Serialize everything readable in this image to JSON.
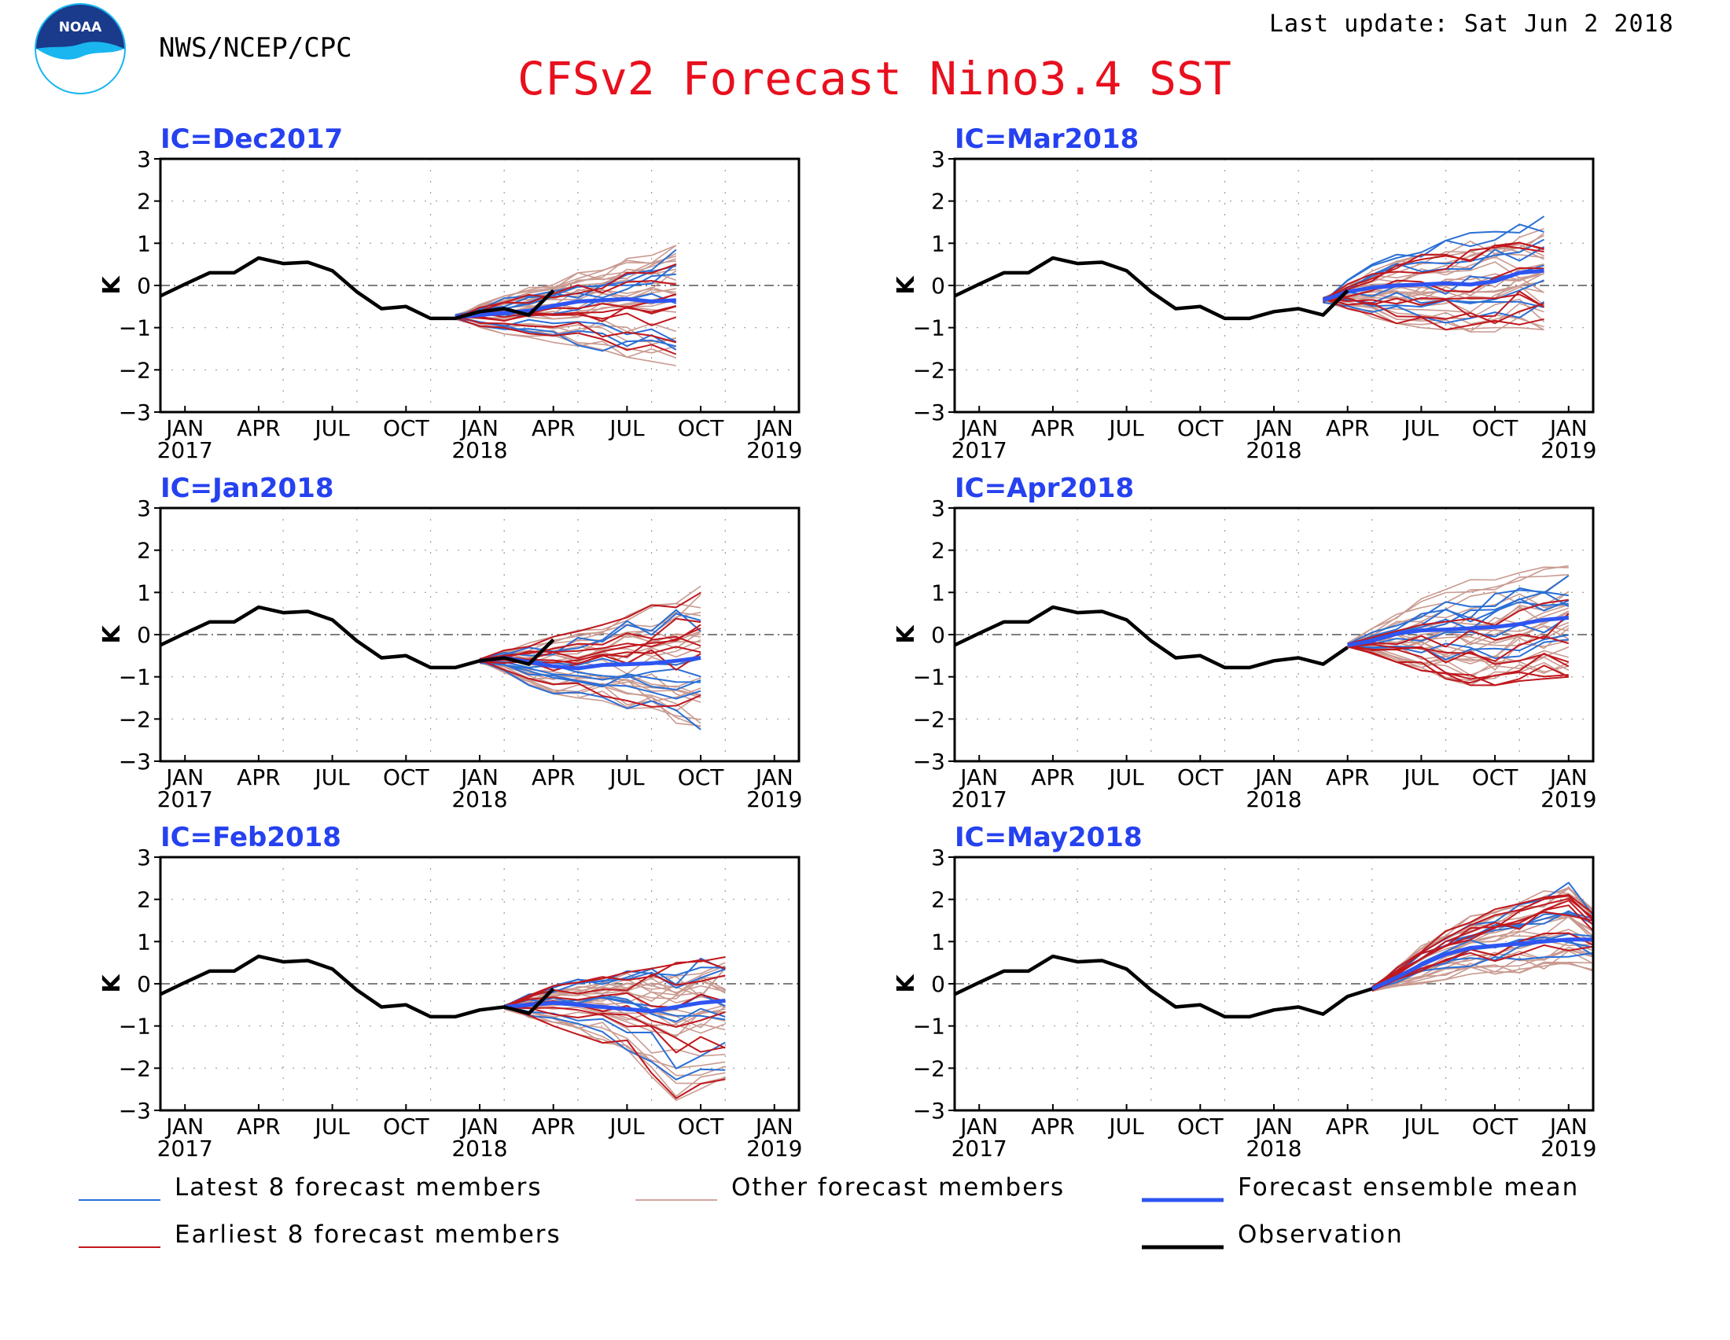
{
  "header": {
    "agency": "NWS/NCEP/CPC",
    "logo_text": "NOAA",
    "title": "CFSv2 Forecast Nino3.4 SST",
    "last_update": "Last update: Sat Jun 2 2018"
  },
  "colors": {
    "title": "#e8101e",
    "panel_title": "#2541f0",
    "latest": "#2a6fd6",
    "other": "#c99a90",
    "earliest": "#c0181e",
    "mean": "#2e55f2",
    "observation": "#000000"
  },
  "legend": [
    {
      "key": "latest",
      "label": "Latest 8 forecast members"
    },
    {
      "key": "other",
      "label": "Other forecast members"
    },
    {
      "key": "mean",
      "label": "Forecast ensemble mean"
    },
    {
      "key": "earliest",
      "label": "Earliest 8 forecast members"
    },
    {
      "key": "observation",
      "label": "Observation"
    }
  ],
  "chart_data": [
    {
      "type": "line",
      "title": "IC=Dec2017",
      "ylabel": "K",
      "ylim": [
        -3,
        3
      ],
      "yticks": [
        "3",
        "2",
        "1",
        "0",
        "−1",
        "−2",
        "−3"
      ],
      "xticks": [
        {
          "month": "JAN",
          "year": "2017"
        },
        {
          "month": "APR"
        },
        {
          "month": "JUL"
        },
        {
          "month": "OCT"
        },
        {
          "month": "JAN",
          "year": "2018"
        },
        {
          "month": "APR"
        },
        {
          "month": "JUL"
        },
        {
          "month": "OCT"
        },
        {
          "month": "JAN",
          "year": "2019"
        }
      ],
      "x_range": [
        "Dec 2016",
        "Feb 2019"
      ],
      "observation": {
        "x": [
          "Dec 2016",
          "Jan 2017",
          "Feb 2017",
          "Mar 2017",
          "Apr 2017",
          "May 2017",
          "Jun 2017",
          "Jul 2017",
          "Aug 2017",
          "Sep 2017",
          "Oct 2017",
          "Nov 2017",
          "Dec 2017",
          "Jan 2018",
          "Feb 2018",
          "Mar 2018",
          "Apr 2018"
        ],
        "y": [
          -0.25,
          0.03,
          0.3,
          0.3,
          0.65,
          0.52,
          0.55,
          0.35,
          -0.15,
          -0.55,
          -0.5,
          -0.78,
          -0.78,
          -0.62,
          -0.55,
          -0.7,
          -0.12
        ]
      },
      "forecast": {
        "start": "Dec 2017",
        "end": "Sep 2018",
        "mean": [
          -0.75,
          -0.7,
          -0.65,
          -0.6,
          -0.48,
          -0.38,
          -0.35,
          -0.32,
          -0.38,
          -0.35
        ],
        "spread_low": [
          -0.85,
          -1.0,
          -1.15,
          -1.25,
          -1.35,
          -1.45,
          -1.55,
          -1.7,
          -1.8,
          -1.9
        ],
        "spread_high": [
          -0.65,
          -0.45,
          -0.25,
          -0.05,
          0.15,
          0.3,
          0.45,
          0.65,
          0.8,
          0.95
        ]
      }
    },
    {
      "type": "line",
      "title": "IC=Mar2018",
      "ylabel": "K",
      "ylim": [
        -3,
        3
      ],
      "yticks": [
        "3",
        "2",
        "1",
        "0",
        "−1",
        "−2",
        "−3"
      ],
      "xticks": [
        {
          "month": "JAN",
          "year": "2017"
        },
        {
          "month": "APR"
        },
        {
          "month": "JUL"
        },
        {
          "month": "OCT"
        },
        {
          "month": "JAN",
          "year": "2018"
        },
        {
          "month": "APR"
        },
        {
          "month": "JUL"
        },
        {
          "month": "OCT"
        },
        {
          "month": "JAN",
          "year": "2019"
        }
      ],
      "x_range": [
        "Dec 2016",
        "Feb 2019"
      ],
      "observation": {
        "x": [
          "Dec 2016",
          "Jan 2017",
          "Feb 2017",
          "Mar 2017",
          "Apr 2017",
          "May 2017",
          "Jun 2017",
          "Jul 2017",
          "Aug 2017",
          "Sep 2017",
          "Oct 2017",
          "Nov 2017",
          "Dec 2017",
          "Jan 2018",
          "Feb 2018",
          "Mar 2018",
          "Apr 2018"
        ],
        "y": [
          -0.25,
          0.03,
          0.3,
          0.3,
          0.65,
          0.52,
          0.55,
          0.35,
          -0.15,
          -0.55,
          -0.5,
          -0.78,
          -0.78,
          -0.62,
          -0.55,
          -0.7,
          -0.12
        ]
      },
      "forecast": {
        "start": "Mar 2018",
        "end": "Dec 2018",
        "mean": [
          -0.35,
          -0.15,
          -0.05,
          0.0,
          0.02,
          0.05,
          0.02,
          0.1,
          0.3,
          0.35
        ],
        "spread_low": [
          -0.45,
          -0.55,
          -0.75,
          -0.9,
          -1.0,
          -1.05,
          -1.1,
          -1.1,
          -1.0,
          -1.05
        ],
        "spread_high": [
          -0.25,
          0.15,
          0.5,
          0.8,
          1.0,
          1.15,
          1.25,
          1.35,
          1.5,
          1.65
        ]
      }
    },
    {
      "type": "line",
      "title": "IC=Jan2018",
      "ylabel": "K",
      "ylim": [
        -3,
        3
      ],
      "yticks": [
        "3",
        "2",
        "1",
        "0",
        "−1",
        "−2",
        "−3"
      ],
      "xticks": [
        {
          "month": "JAN",
          "year": "2017"
        },
        {
          "month": "APR"
        },
        {
          "month": "JUL"
        },
        {
          "month": "OCT"
        },
        {
          "month": "JAN",
          "year": "2018"
        },
        {
          "month": "APR"
        },
        {
          "month": "JUL"
        },
        {
          "month": "OCT"
        },
        {
          "month": "JAN",
          "year": "2019"
        }
      ],
      "x_range": [
        "Dec 2016",
        "Feb 2019"
      ],
      "observation": {
        "x": [
          "Dec 2016",
          "Jan 2017",
          "Feb 2017",
          "Mar 2017",
          "Apr 2017",
          "May 2017",
          "Jun 2017",
          "Jul 2017",
          "Aug 2017",
          "Sep 2017",
          "Oct 2017",
          "Nov 2017",
          "Dec 2017",
          "Jan 2018",
          "Feb 2018",
          "Mar 2018",
          "Apr 2018"
        ],
        "y": [
          -0.25,
          0.03,
          0.3,
          0.3,
          0.65,
          0.52,
          0.55,
          0.35,
          -0.15,
          -0.55,
          -0.5,
          -0.78,
          -0.78,
          -0.62,
          -0.55,
          -0.7,
          -0.12
        ]
      },
      "forecast": {
        "start": "Jan 2018",
        "end": "Oct 2018",
        "mean": [
          -0.62,
          -0.55,
          -0.65,
          -0.75,
          -0.8,
          -0.72,
          -0.7,
          -0.68,
          -0.62,
          -0.55
        ],
        "spread_low": [
          -0.7,
          -0.9,
          -1.2,
          -1.4,
          -1.5,
          -1.6,
          -1.75,
          -1.9,
          -2.1,
          -2.25
        ],
        "spread_high": [
          -0.5,
          -0.35,
          -0.2,
          -0.05,
          0.1,
          0.3,
          0.5,
          0.7,
          0.95,
          1.15
        ]
      }
    },
    {
      "type": "line",
      "title": "IC=Apr2018",
      "ylabel": "K",
      "ylim": [
        -3,
        3
      ],
      "yticks": [
        "3",
        "2",
        "1",
        "0",
        "−1",
        "−2",
        "−3"
      ],
      "xticks": [
        {
          "month": "JAN",
          "year": "2017"
        },
        {
          "month": "APR"
        },
        {
          "month": "JUL"
        },
        {
          "month": "OCT"
        },
        {
          "month": "JAN",
          "year": "2018"
        },
        {
          "month": "APR"
        },
        {
          "month": "JUL"
        },
        {
          "month": "OCT"
        },
        {
          "month": "JAN",
          "year": "2019"
        }
      ],
      "x_range": [
        "Dec 2016",
        "Feb 2019"
      ],
      "observation": {
        "x": [
          "Dec 2016",
          "Jan 2017",
          "Feb 2017",
          "Mar 2017",
          "Apr 2017",
          "May 2017",
          "Jun 2017",
          "Jul 2017",
          "Aug 2017",
          "Sep 2017",
          "Oct 2017",
          "Nov 2017",
          "Dec 2017",
          "Jan 2018",
          "Feb 2018",
          "Mar 2018",
          "Apr 2018"
        ],
        "y": [
          -0.25,
          0.03,
          0.3,
          0.3,
          0.65,
          0.52,
          0.55,
          0.35,
          -0.15,
          -0.55,
          -0.5,
          -0.78,
          -0.78,
          -0.62,
          -0.55,
          -0.7,
          -0.3
        ]
      },
      "forecast": {
        "start": "Apr 2018",
        "end": "Jan 2019",
        "mean": [
          -0.25,
          -0.15,
          0.02,
          0.1,
          0.12,
          0.15,
          0.18,
          0.25,
          0.35,
          0.4
        ],
        "spread_low": [
          -0.3,
          -0.45,
          -0.65,
          -0.85,
          -1.05,
          -1.2,
          -1.2,
          -1.1,
          -1.05,
          -1.0
        ],
        "spread_high": [
          -0.2,
          0.15,
          0.5,
          0.85,
          1.1,
          1.3,
          1.45,
          1.6,
          1.75,
          1.9
        ]
      }
    },
    {
      "type": "line",
      "title": "IC=Feb2018",
      "ylabel": "K",
      "ylim": [
        -3,
        3
      ],
      "yticks": [
        "3",
        "2",
        "1",
        "0",
        "−1",
        "−2",
        "−3"
      ],
      "xticks": [
        {
          "month": "JAN",
          "year": "2017"
        },
        {
          "month": "APR"
        },
        {
          "month": "JUL"
        },
        {
          "month": "OCT"
        },
        {
          "month": "JAN",
          "year": "2018"
        },
        {
          "month": "APR"
        },
        {
          "month": "JUL"
        },
        {
          "month": "OCT"
        },
        {
          "month": "JAN",
          "year": "2019"
        }
      ],
      "x_range": [
        "Dec 2016",
        "Feb 2019"
      ],
      "observation": {
        "x": [
          "Dec 2016",
          "Jan 2017",
          "Feb 2017",
          "Mar 2017",
          "Apr 2017",
          "May 2017",
          "Jun 2017",
          "Jul 2017",
          "Aug 2017",
          "Sep 2017",
          "Oct 2017",
          "Nov 2017",
          "Dec 2017",
          "Jan 2018",
          "Feb 2018",
          "Mar 2018",
          "Apr 2018"
        ],
        "y": [
          -0.25,
          0.03,
          0.3,
          0.3,
          0.65,
          0.52,
          0.55,
          0.35,
          -0.15,
          -0.55,
          -0.5,
          -0.78,
          -0.78,
          -0.62,
          -0.55,
          -0.7,
          -0.12
        ]
      },
      "forecast": {
        "start": "Feb 2018",
        "end": "Nov 2018",
        "mean": [
          -0.55,
          -0.5,
          -0.45,
          -0.5,
          -0.55,
          -0.6,
          -0.65,
          -0.55,
          -0.45,
          -0.4
        ],
        "spread_low": [
          -0.6,
          -0.8,
          -1.0,
          -1.2,
          -1.4,
          -1.7,
          -2.2,
          -2.8,
          -2.5,
          -2.4
        ],
        "spread_high": [
          -0.5,
          -0.25,
          -0.05,
          0.1,
          0.2,
          0.3,
          0.4,
          0.5,
          0.6,
          0.7
        ]
      }
    },
    {
      "type": "line",
      "title": "IC=May2018",
      "ylabel": "K",
      "ylim": [
        -3,
        3
      ],
      "yticks": [
        "3",
        "2",
        "1",
        "0",
        "−1",
        "−2",
        "−3"
      ],
      "xticks": [
        {
          "month": "JAN",
          "year": "2017"
        },
        {
          "month": "APR"
        },
        {
          "month": "JUL"
        },
        {
          "month": "OCT"
        },
        {
          "month": "JAN",
          "year": "2018"
        },
        {
          "month": "APR"
        },
        {
          "month": "JUL"
        },
        {
          "month": "OCT"
        },
        {
          "month": "JAN",
          "year": "2019"
        }
      ],
      "x_range": [
        "Dec 2016",
        "Feb 2019"
      ],
      "observation": {
        "x": [
          "Dec 2016",
          "Jan 2017",
          "Feb 2017",
          "Mar 2017",
          "Apr 2017",
          "May 2017",
          "Jun 2017",
          "Jul 2017",
          "Aug 2017",
          "Sep 2017",
          "Oct 2017",
          "Nov 2017",
          "Dec 2017",
          "Jan 2018",
          "Feb 2018",
          "Mar 2018",
          "Apr 2018",
          "May 2018"
        ],
        "y": [
          -0.25,
          0.03,
          0.3,
          0.3,
          0.65,
          0.52,
          0.55,
          0.35,
          -0.15,
          -0.55,
          -0.5,
          -0.78,
          -0.78,
          -0.62,
          -0.55,
          -0.72,
          -0.3,
          -0.12
        ]
      },
      "forecast": {
        "start": "May 2018",
        "end": "Feb 2019",
        "mean": [
          -0.12,
          0.15,
          0.45,
          0.7,
          0.85,
          0.9,
          0.95,
          1.0,
          1.05,
          1.05
        ],
        "spread_low": [
          -0.15,
          -0.1,
          0.0,
          0.1,
          0.15,
          0.15,
          0.2,
          0.2,
          0.25,
          0.3
        ],
        "spread_high": [
          -0.1,
          0.4,
          0.9,
          1.3,
          1.6,
          1.8,
          2.0,
          2.2,
          2.4,
          1.8
        ]
      }
    }
  ]
}
